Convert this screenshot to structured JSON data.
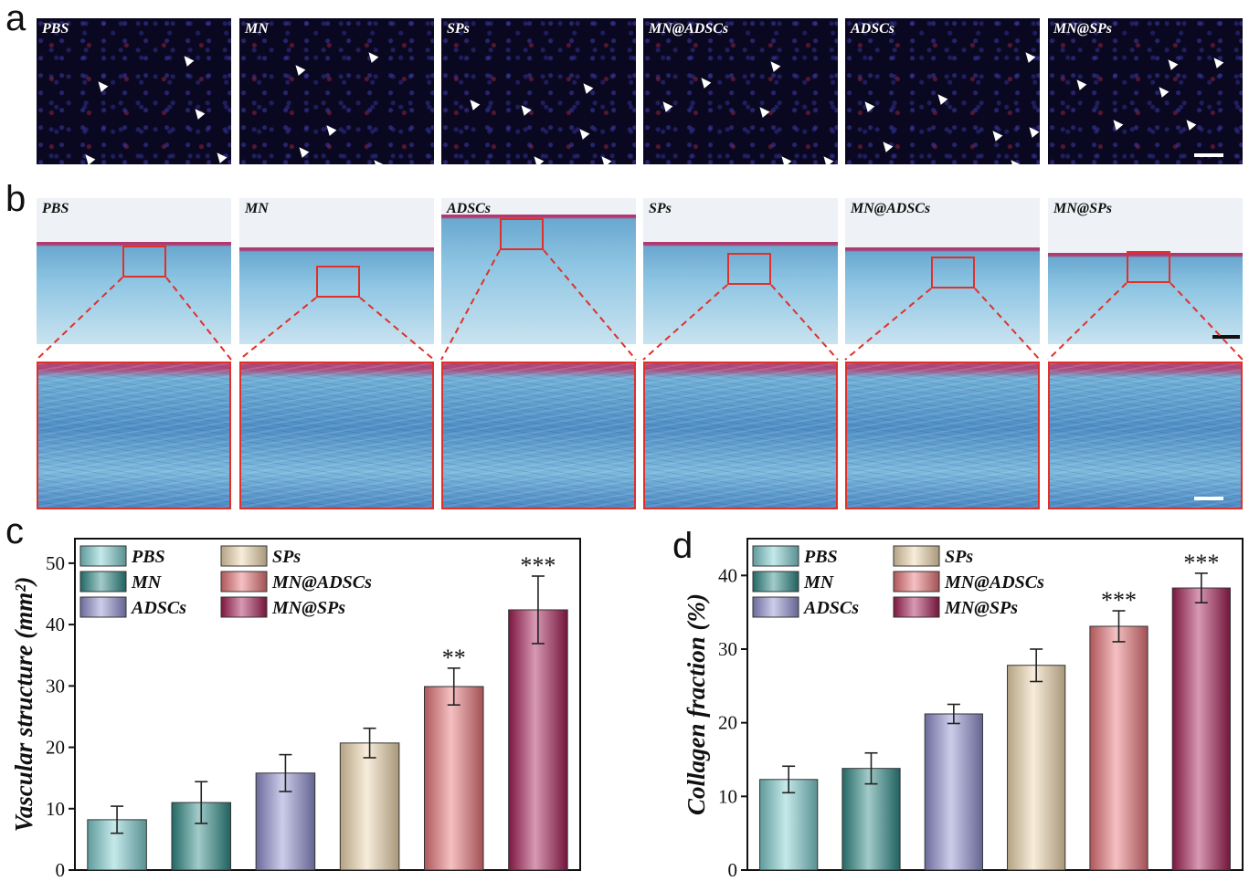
{
  "panels": {
    "a": {
      "letter": "a",
      "labels": [
        "PBS",
        "MN",
        "SPs",
        "MN@ADSCs",
        "ADSCs",
        "MN@SPs"
      ]
    },
    "b": {
      "letter": "b",
      "labels": [
        "PBS",
        "MN",
        "ADSCs",
        "SPs",
        "MN@ADSCs",
        "MN@SPs"
      ]
    },
    "c": {
      "letter": "c"
    },
    "d": {
      "letter": "d"
    }
  },
  "colors": {
    "PBS": "#7fcfd0",
    "MN": "#2e8b87",
    "ADSCs": "#8f8fd0",
    "SPs": "#f0d8ae",
    "MN@ADSCs": "#e87478",
    "MN@SPs": "#a51d55",
    "arrow": "#ffffff",
    "box": "#e0302a"
  },
  "chart_data": [
    {
      "type": "bar",
      "panel": "c",
      "categories": [
        "PBS",
        "MN",
        "ADSCs",
        "SPs",
        "MN@ADSCs",
        "MN@SPs"
      ],
      "values": [
        8.2,
        11.0,
        15.8,
        20.7,
        29.9,
        42.4
      ],
      "errors": [
        2.2,
        3.4,
        3.0,
        2.4,
        3.0,
        5.5
      ],
      "significance": [
        "",
        "",
        "",
        "",
        "**",
        "***"
      ],
      "ylabel": "Vascular structure (mm²)",
      "ylim": [
        0,
        54
      ],
      "yticks": [
        0,
        10,
        20,
        30,
        40,
        50
      ],
      "legend": [
        "PBS",
        "MN",
        "ADSCs",
        "SPs",
        "MN@ADSCs",
        "MN@SPs"
      ],
      "legend_position": "top"
    },
    {
      "type": "bar",
      "panel": "d",
      "categories": [
        "PBS",
        "MN",
        "ADSCs",
        "SPs",
        "MN@ADSCs",
        "MN@SPs"
      ],
      "values": [
        12.3,
        13.8,
        21.2,
        27.8,
        33.1,
        38.3
      ],
      "errors": [
        1.8,
        2.1,
        1.3,
        2.2,
        2.1,
        2.0
      ],
      "significance": [
        "",
        "",
        "",
        "",
        "***",
        "***"
      ],
      "ylabel": "Collagen fraction (%)",
      "ylim": [
        0,
        45
      ],
      "yticks": [
        0,
        10,
        20,
        30,
        40
      ],
      "legend": [
        "PBS",
        "MN",
        "ADSCs",
        "SPs",
        "MN@ADSCs",
        "MN@SPs"
      ],
      "legend_position": "top"
    }
  ]
}
